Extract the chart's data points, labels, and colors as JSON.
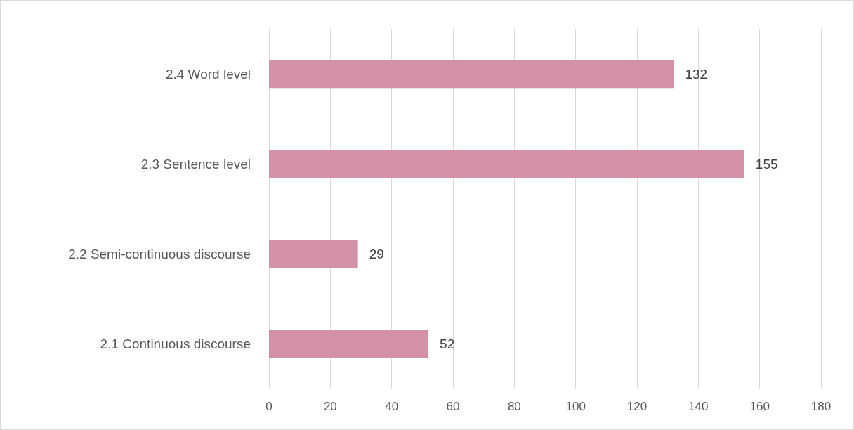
{
  "chart_data": {
    "type": "bar",
    "orientation": "horizontal",
    "categories": [
      "2.4 Word level",
      "2.3 Sentence level",
      "2.2 Semi-continuous discourse",
      "2.1 Continuous discourse"
    ],
    "values": [
      132,
      155,
      29,
      52
    ],
    "color": "#d291a6",
    "xlim": [
      0,
      180
    ],
    "xticks": [
      0,
      20,
      40,
      60,
      80,
      100,
      120,
      140,
      160,
      180
    ],
    "grid": "x",
    "data_labels": true
  }
}
